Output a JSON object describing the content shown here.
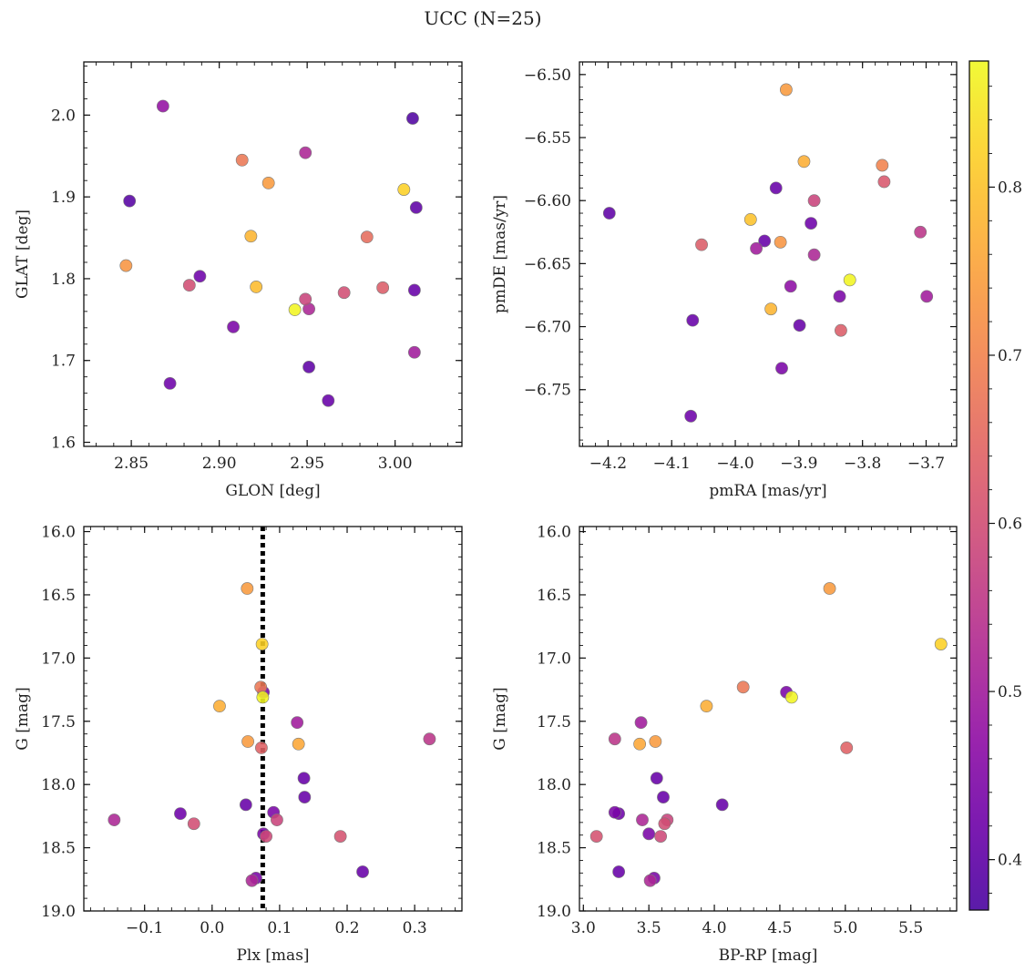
{
  "figure": {
    "title": "UCC (N=25)"
  },
  "colorbar": {
    "colormap": "plasma",
    "range": [
      0.37,
      0.875
    ],
    "ticks": [
      0.4,
      0.5,
      0.6,
      0.7,
      0.8
    ],
    "tick_labels": [
      "0.4",
      "0.5",
      "0.6",
      "0.7",
      "0.8"
    ]
  },
  "chart_data": [
    {
      "type": "scatter",
      "panel": "top-left",
      "xlabel": "GLON [deg]",
      "ylabel": "GLAT [deg]",
      "xlim": [
        2.823,
        3.038
      ],
      "ylim": [
        1.595,
        2.065
      ],
      "xticks": [
        2.85,
        2.9,
        2.95,
        3.0
      ],
      "xtick_labels": [
        "2.85",
        "2.90",
        "2.95",
        "3.00"
      ],
      "yticks": [
        1.6,
        1.7,
        1.8,
        1.9,
        2.0
      ],
      "ytick_labels": [
        "1.6",
        "1.7",
        "1.8",
        "1.9",
        "2.0"
      ],
      "points": [
        {
          "x": 2.868,
          "y": 2.011,
          "c": 0.48
        },
        {
          "x": 2.913,
          "y": 1.945,
          "c": 0.68
        },
        {
          "x": 2.949,
          "y": 1.954,
          "c": 0.52
        },
        {
          "x": 3.01,
          "y": 1.996,
          "c": 0.38
        },
        {
          "x": 2.849,
          "y": 1.895,
          "c": 0.39
        },
        {
          "x": 2.928,
          "y": 1.917,
          "c": 0.74
        },
        {
          "x": 3.005,
          "y": 1.909,
          "c": 0.82
        },
        {
          "x": 3.012,
          "y": 1.887,
          "c": 0.4
        },
        {
          "x": 2.918,
          "y": 1.852,
          "c": 0.78
        },
        {
          "x": 2.984,
          "y": 1.851,
          "c": 0.66
        },
        {
          "x": 2.847,
          "y": 1.816,
          "c": 0.73
        },
        {
          "x": 2.889,
          "y": 1.803,
          "c": 0.42
        },
        {
          "x": 2.883,
          "y": 1.792,
          "c": 0.6
        },
        {
          "x": 2.921,
          "y": 1.79,
          "c": 0.79
        },
        {
          "x": 2.993,
          "y": 1.789,
          "c": 0.63
        },
        {
          "x": 3.011,
          "y": 1.786,
          "c": 0.41
        },
        {
          "x": 2.971,
          "y": 1.783,
          "c": 0.6
        },
        {
          "x": 2.949,
          "y": 1.775,
          "c": 0.58
        },
        {
          "x": 2.951,
          "y": 1.763,
          "c": 0.52
        },
        {
          "x": 2.943,
          "y": 1.762,
          "c": 0.87
        },
        {
          "x": 2.908,
          "y": 1.741,
          "c": 0.44
        },
        {
          "x": 3.011,
          "y": 1.71,
          "c": 0.5
        },
        {
          "x": 2.951,
          "y": 1.692,
          "c": 0.4
        },
        {
          "x": 2.872,
          "y": 1.672,
          "c": 0.42
        },
        {
          "x": 2.962,
          "y": 1.651,
          "c": 0.41
        }
      ]
    },
    {
      "type": "scatter",
      "panel": "top-right",
      "xlabel": "pmRA [mas/yr]",
      "ylabel": "pmDE [mas/yr]",
      "xlim": [
        -4.245,
        -3.652
      ],
      "ylim": [
        -6.795,
        -6.49
      ],
      "xticks": [
        -4.2,
        -4.1,
        -4.0,
        -3.9,
        -3.8,
        -3.7
      ],
      "xtick_labels": [
        "−4.2",
        "−4.1",
        "−4.0",
        "−3.9",
        "−3.8",
        "−3.7"
      ],
      "yticks": [
        -6.5,
        -6.55,
        -6.6,
        -6.65,
        -6.7,
        -6.75
      ],
      "ytick_labels": [
        "−6.50",
        "−6.55",
        "−6.60",
        "−6.65",
        "−6.70",
        "−6.75"
      ],
      "points": [
        {
          "x": -3.92,
          "y": -6.512,
          "c": 0.74
        },
        {
          "x": -3.892,
          "y": -6.569,
          "c": 0.77
        },
        {
          "x": -3.769,
          "y": -6.572,
          "c": 0.7
        },
        {
          "x": -3.766,
          "y": -6.585,
          "c": 0.62
        },
        {
          "x": -3.936,
          "y": -6.59,
          "c": 0.41
        },
        {
          "x": -4.198,
          "y": -6.61,
          "c": 0.4
        },
        {
          "x": -3.876,
          "y": -6.6,
          "c": 0.58
        },
        {
          "x": -3.976,
          "y": -6.615,
          "c": 0.8
        },
        {
          "x": -3.881,
          "y": -6.618,
          "c": 0.42
        },
        {
          "x": -3.709,
          "y": -6.625,
          "c": 0.55
        },
        {
          "x": -4.053,
          "y": -6.635,
          "c": 0.63
        },
        {
          "x": -3.954,
          "y": -6.632,
          "c": 0.41
        },
        {
          "x": -3.929,
          "y": -6.633,
          "c": 0.73
        },
        {
          "x": -3.967,
          "y": -6.638,
          "c": 0.5
        },
        {
          "x": -3.876,
          "y": -6.643,
          "c": 0.52
        },
        {
          "x": -3.82,
          "y": -6.663,
          "c": 0.87
        },
        {
          "x": -3.913,
          "y": -6.668,
          "c": 0.47
        },
        {
          "x": -3.836,
          "y": -6.676,
          "c": 0.44
        },
        {
          "x": -3.699,
          "y": -6.676,
          "c": 0.5
        },
        {
          "x": -3.944,
          "y": -6.686,
          "c": 0.78
        },
        {
          "x": -4.067,
          "y": -6.695,
          "c": 0.41
        },
        {
          "x": -3.899,
          "y": -6.699,
          "c": 0.41
        },
        {
          "x": -3.834,
          "y": -6.703,
          "c": 0.63
        },
        {
          "x": -3.927,
          "y": -6.733,
          "c": 0.44
        },
        {
          "x": -4.07,
          "y": -6.771,
          "c": 0.42
        }
      ]
    },
    {
      "type": "scatter",
      "panel": "bottom-left",
      "xlabel": "Plx [mas]",
      "ylabel": "G [mag]",
      "xlim": [
        -0.19,
        0.37
      ],
      "ylim": [
        19.0,
        15.96
      ],
      "xticks": [
        -0.1,
        0.0,
        0.1,
        0.2,
        0.3
      ],
      "xtick_labels": [
        "−0.1",
        "0.0",
        "0.1",
        "0.2",
        "0.3"
      ],
      "yticks": [
        16.0,
        16.5,
        17.0,
        17.5,
        18.0,
        18.5,
        19.0
      ],
      "ytick_labels": [
        "16.0",
        "16.5",
        "17.0",
        "17.5",
        "18.0",
        "18.5",
        "19.0"
      ],
      "vline_x": 0.075,
      "points": [
        {
          "x": 0.052,
          "y": 16.45,
          "c": 0.74
        },
        {
          "x": 0.074,
          "y": 16.89,
          "c": 0.82
        },
        {
          "x": 0.076,
          "y": 17.27,
          "c": 0.44
        },
        {
          "x": 0.072,
          "y": 17.23,
          "c": 0.68
        },
        {
          "x": 0.075,
          "y": 17.31,
          "c": 0.87
        },
        {
          "x": 0.011,
          "y": 17.38,
          "c": 0.77
        },
        {
          "x": 0.126,
          "y": 17.51,
          "c": 0.5
        },
        {
          "x": 0.322,
          "y": 17.64,
          "c": 0.55
        },
        {
          "x": 0.053,
          "y": 17.66,
          "c": 0.74
        },
        {
          "x": 0.128,
          "y": 17.68,
          "c": 0.76
        },
        {
          "x": 0.073,
          "y": 17.71,
          "c": 0.64
        },
        {
          "x": 0.136,
          "y": 17.95,
          "c": 0.41
        },
        {
          "x": 0.137,
          "y": 18.1,
          "c": 0.41
        },
        {
          "x": 0.05,
          "y": 18.16,
          "c": 0.41
        },
        {
          "x": -0.047,
          "y": 18.23,
          "c": 0.42
        },
        {
          "x": 0.091,
          "y": 18.22,
          "c": 0.44
        },
        {
          "x": -0.145,
          "y": 18.28,
          "c": 0.52
        },
        {
          "x": 0.096,
          "y": 18.28,
          "c": 0.58
        },
        {
          "x": -0.027,
          "y": 18.31,
          "c": 0.6
        },
        {
          "x": 0.076,
          "y": 18.39,
          "c": 0.44
        },
        {
          "x": 0.08,
          "y": 18.41,
          "c": 0.59
        },
        {
          "x": 0.19,
          "y": 18.41,
          "c": 0.61
        },
        {
          "x": 0.223,
          "y": 18.69,
          "c": 0.41
        },
        {
          "x": 0.065,
          "y": 18.74,
          "c": 0.44
        },
        {
          "x": 0.059,
          "y": 18.76,
          "c": 0.52
        }
      ]
    },
    {
      "type": "scatter",
      "panel": "bottom-right",
      "xlabel": "BP-RP [mag]",
      "ylabel": "G [mag]",
      "xlim": [
        2.97,
        5.85
      ],
      "ylim": [
        19.0,
        15.96
      ],
      "xticks": [
        3.0,
        3.5,
        4.0,
        4.5,
        5.0,
        5.5
      ],
      "xtick_labels": [
        "3.0",
        "3.5",
        "4.0",
        "4.5",
        "5.0",
        "5.5"
      ],
      "yticks": [
        16.0,
        16.5,
        17.0,
        17.5,
        18.0,
        18.5,
        19.0
      ],
      "ytick_labels": [
        "16.0",
        "16.5",
        "17.0",
        "17.5",
        "18.0",
        "18.5",
        "19.0"
      ],
      "points": [
        {
          "x": 4.88,
          "y": 16.45,
          "c": 0.74
        },
        {
          "x": 5.73,
          "y": 16.89,
          "c": 0.82
        },
        {
          "x": 4.22,
          "y": 17.23,
          "c": 0.68
        },
        {
          "x": 4.55,
          "y": 17.27,
          "c": 0.44
        },
        {
          "x": 4.59,
          "y": 17.31,
          "c": 0.87
        },
        {
          "x": 3.94,
          "y": 17.38,
          "c": 0.77
        },
        {
          "x": 3.44,
          "y": 17.51,
          "c": 0.5
        },
        {
          "x": 3.24,
          "y": 17.64,
          "c": 0.55
        },
        {
          "x": 3.55,
          "y": 17.66,
          "c": 0.74
        },
        {
          "x": 3.43,
          "y": 17.68,
          "c": 0.76
        },
        {
          "x": 5.01,
          "y": 17.71,
          "c": 0.64
        },
        {
          "x": 3.56,
          "y": 17.95,
          "c": 0.41
        },
        {
          "x": 3.61,
          "y": 18.1,
          "c": 0.41
        },
        {
          "x": 4.06,
          "y": 18.16,
          "c": 0.41
        },
        {
          "x": 3.24,
          "y": 18.22,
          "c": 0.44
        },
        {
          "x": 3.27,
          "y": 18.23,
          "c": 0.42
        },
        {
          "x": 3.45,
          "y": 18.28,
          "c": 0.52
        },
        {
          "x": 3.64,
          "y": 18.28,
          "c": 0.58
        },
        {
          "x": 3.62,
          "y": 18.31,
          "c": 0.6
        },
        {
          "x": 3.5,
          "y": 18.39,
          "c": 0.44
        },
        {
          "x": 3.59,
          "y": 18.41,
          "c": 0.59
        },
        {
          "x": 3.1,
          "y": 18.41,
          "c": 0.61
        },
        {
          "x": 3.27,
          "y": 18.69,
          "c": 0.41
        },
        {
          "x": 3.54,
          "y": 18.74,
          "c": 0.44
        },
        {
          "x": 3.51,
          "y": 18.76,
          "c": 0.52
        }
      ]
    }
  ]
}
